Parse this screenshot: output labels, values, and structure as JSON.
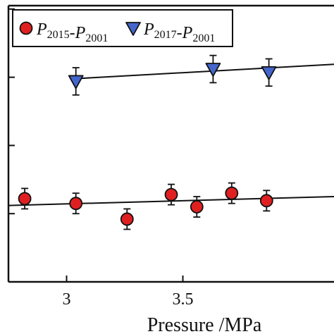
{
  "chart_data": {
    "type": "scatter",
    "title": "",
    "xlabel": "Pressure /MPa",
    "ylabel": "",
    "xlim": [
      2.75,
      4.15
    ],
    "ylim": [
      -1.0,
      3.05
    ],
    "x_ticks": [
      {
        "value": 3.0,
        "label": "3"
      },
      {
        "value": 3.5,
        "label": "3.5"
      }
    ],
    "y_ticks": [
      0,
      1,
      2,
      3
    ],
    "legend_position": "top-left",
    "series": [
      {
        "name": "P2015-P2001",
        "legend_parts": [
          {
            "text": "P",
            "italic": true,
            "sub": false
          },
          {
            "text": "2015",
            "italic": false,
            "sub": true
          },
          {
            "text": "-",
            "italic": false,
            "sub": false
          },
          {
            "text": "P",
            "italic": true,
            "sub": false
          },
          {
            "text": "2001",
            "italic": false,
            "sub": true
          }
        ],
        "marker": "circle",
        "color": "#e02020",
        "points": [
          {
            "x": 2.82,
            "y": 0.22,
            "err": 0.15
          },
          {
            "x": 3.04,
            "y": 0.15,
            "err": 0.15
          },
          {
            "x": 3.26,
            "y": -0.08,
            "err": 0.15
          },
          {
            "x": 3.45,
            "y": 0.28,
            "err": 0.15
          },
          {
            "x": 3.56,
            "y": 0.1,
            "err": 0.15
          },
          {
            "x": 3.71,
            "y": 0.3,
            "err": 0.15
          },
          {
            "x": 3.86,
            "y": 0.19,
            "err": 0.15
          }
        ],
        "fit": [
          {
            "x": 2.75,
            "y": 0.12
          },
          {
            "x": 4.15,
            "y": 0.25
          }
        ]
      },
      {
        "name": "P2017-P2001",
        "legend_parts": [
          {
            "text": "P",
            "italic": true,
            "sub": false
          },
          {
            "text": "2017",
            "italic": false,
            "sub": true
          },
          {
            "text": "-",
            "italic": false,
            "sub": false
          },
          {
            "text": "P",
            "italic": true,
            "sub": false
          },
          {
            "text": "2001",
            "italic": false,
            "sub": true
          }
        ],
        "marker": "triangle-down",
        "color": "#4466cc",
        "points": [
          {
            "x": 3.04,
            "y": 1.94,
            "err": 0.2
          },
          {
            "x": 3.63,
            "y": 2.12,
            "err": 0.2
          },
          {
            "x": 3.87,
            "y": 2.07,
            "err": 0.2
          }
        ],
        "fit": [
          {
            "x": 3.04,
            "y": 1.98
          },
          {
            "x": 4.15,
            "y": 2.19
          }
        ]
      }
    ]
  }
}
